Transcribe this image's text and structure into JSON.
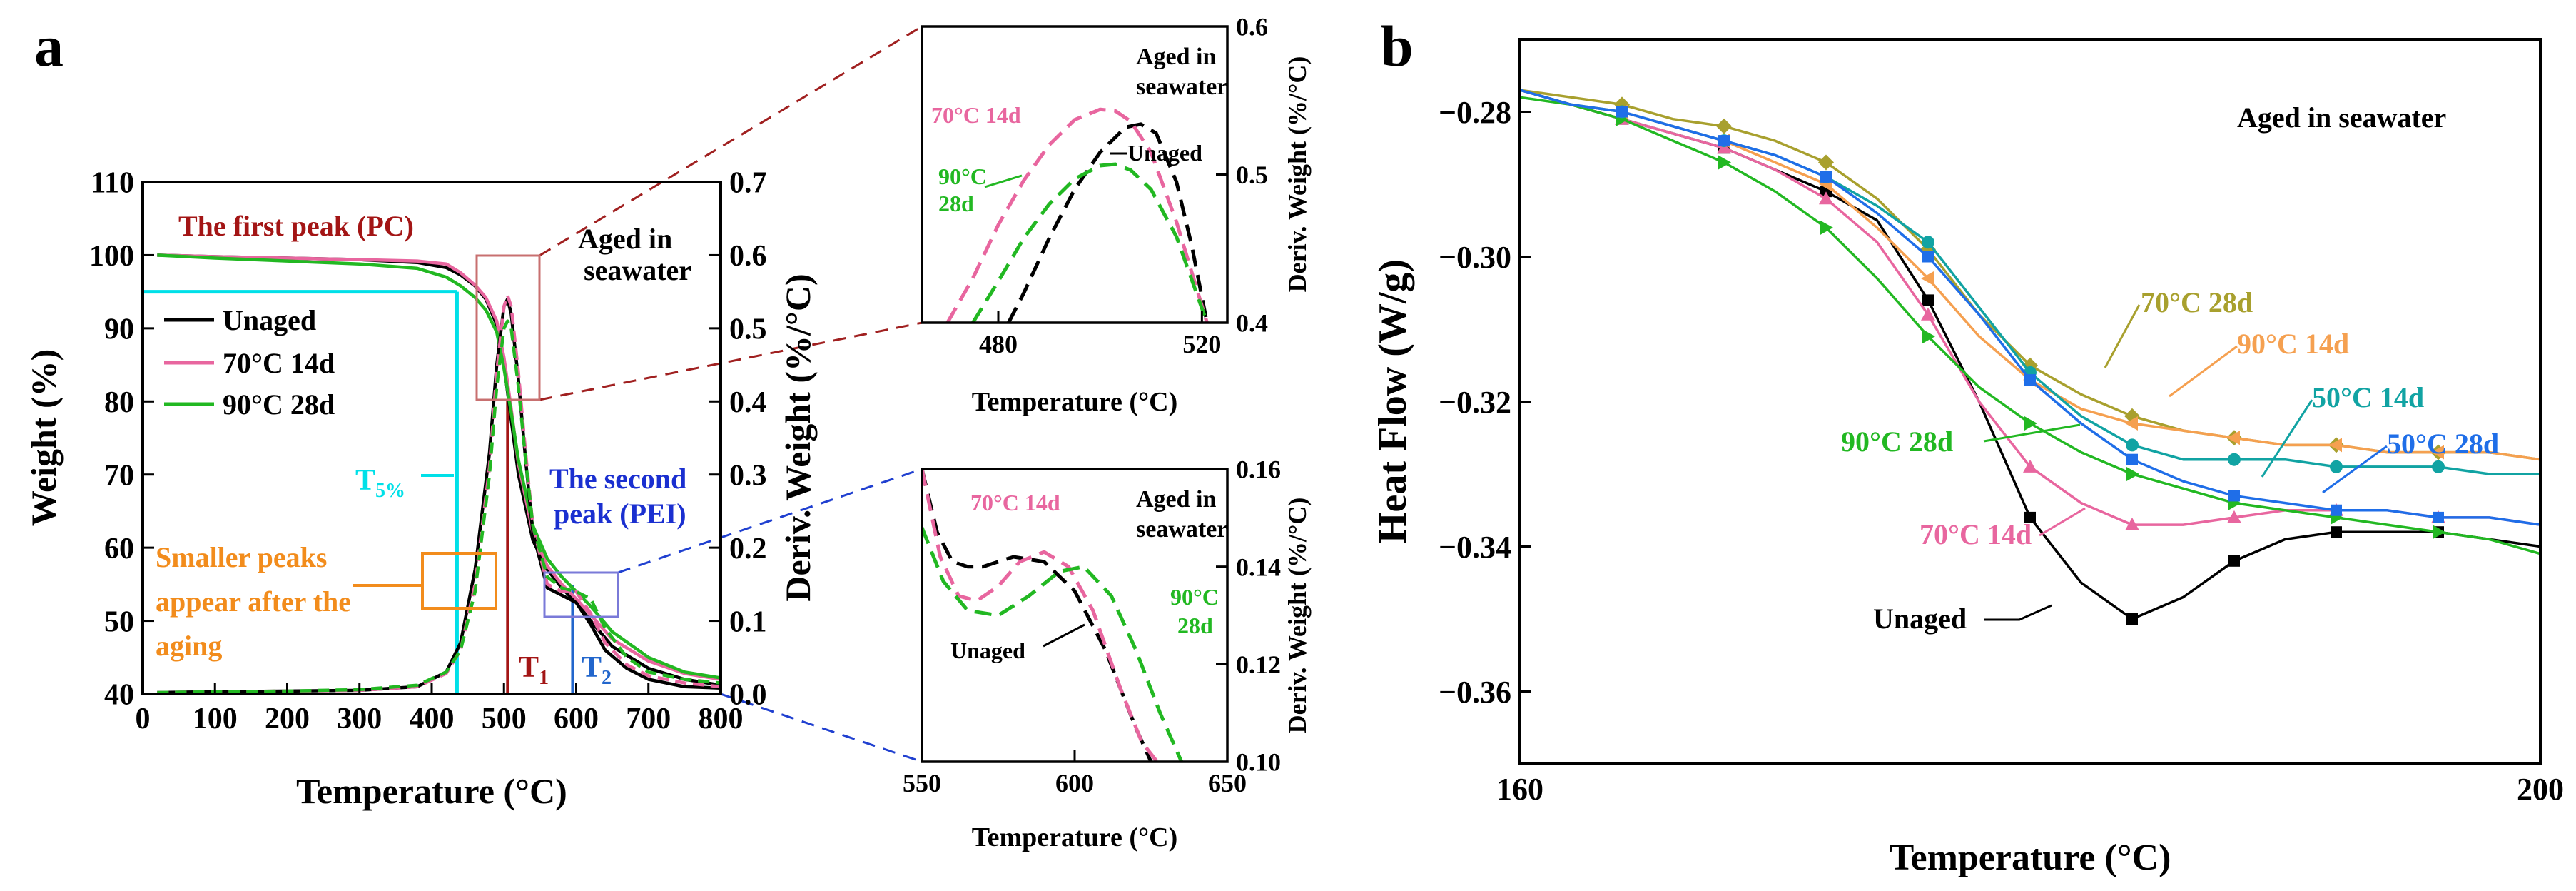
{
  "colors": {
    "unaged": "#000000",
    "c70_14": "#e8669f",
    "c90_28": "#22b822",
    "c70_28": "#a8a02e",
    "c90_14": "#f5a050",
    "c50_14": "#11a3a3",
    "c50_28": "#1f6ee8",
    "pc_label": "#a31515",
    "pei_label": "#1a2fd0",
    "cyan": "#00e0e8",
    "orange": "#f28c1c",
    "t1_line": "#a31515",
    "t2_line": "#2266cc",
    "zoom_box_top": "#c87070",
    "zoom_box_bottom": "#7a7ad8",
    "top_zoom_line": "#a02020",
    "bottom_zoom_line": "#2040d0"
  },
  "panel_a": {
    "label": "a",
    "annotations": {
      "first_peak": "The first peak (PC)",
      "aged": [
        "Aged in",
        "seawater"
      ],
      "second_peak": [
        "The second",
        "peak (PEI)"
      ],
      "smaller_peaks": [
        "Smaller peaks",
        "appear after the",
        "aging"
      ],
      "t5": "T",
      "t5_sub": "5%",
      "t1": "T",
      "t1_sub": "1",
      "t2": "T",
      "t2_sub": "2"
    },
    "legend": [
      "Unaged",
      "70°C 14d",
      "90°C 28d"
    ]
  },
  "panel_b": {
    "label": "b",
    "annotation": "Aged in seawater",
    "series_labels": {
      "c70_28": "70°C 28d",
      "c90_14": "90°C 14d",
      "c50_14": "50°C 14d",
      "c50_28": "50°C 28d",
      "c90_28": "90°C 28d",
      "c70_14": "70°C 14d",
      "unaged": "Unaged"
    }
  },
  "inset_top": {
    "labels": {
      "c70_14": "70°C 14d",
      "c90_28": [
        "90°C",
        "28d"
      ],
      "unaged": "Unaged"
    },
    "aged": [
      "Aged in",
      "seawater"
    ]
  },
  "inset_bottom": {
    "labels": {
      "c70_14": "70°C 14d",
      "c90_28": [
        "90°C",
        "28d"
      ],
      "unaged": "Unaged"
    },
    "aged": [
      "Aged in",
      "seawater"
    ]
  },
  "chart_data": [
    {
      "id": "tga",
      "type": "line",
      "xlabel": "Temperature (°C)",
      "ylabel": "Weight (%)",
      "y2label": "Deriv. Weight (%/°C)",
      "xlim": [
        0,
        800
      ],
      "ylim": [
        40,
        110
      ],
      "y2lim": [
        0,
        0.7
      ],
      "xticks": [
        0,
        100,
        200,
        300,
        400,
        500,
        600,
        700,
        800
      ],
      "yticks": [
        40,
        50,
        60,
        70,
        80,
        90,
        100,
        110
      ],
      "y2ticks": [
        0.0,
        0.1,
        0.2,
        0.3,
        0.4,
        0.5,
        0.6,
        0.7
      ],
      "t5_temperature": 435,
      "t5_weight": 95,
      "t1_temperature": 505,
      "t2_temperature": 595,
      "weight_series": [
        {
          "key": "unaged",
          "x": [
            20,
            100,
            200,
            300,
            380,
            420,
            440,
            460,
            475,
            490,
            500,
            510,
            520,
            540,
            560,
            580,
            600,
            620,
            650,
            700,
            750,
            800
          ],
          "y": [
            100,
            99.8,
            99.6,
            99.4,
            99.0,
            98.3,
            97.3,
            95.8,
            94.0,
            90.5,
            85.0,
            77.5,
            70.0,
            61.0,
            57.0,
            54.5,
            52.5,
            50.0,
            46.5,
            43.5,
            42.0,
            41.2
          ]
        },
        {
          "key": "c70_14",
          "x": [
            20,
            100,
            200,
            300,
            380,
            420,
            440,
            460,
            475,
            490,
            500,
            510,
            520,
            540,
            560,
            580,
            600,
            620,
            650,
            700,
            750,
            800
          ],
          "y": [
            100,
            99.8,
            99.6,
            99.4,
            99.2,
            98.8,
            97.6,
            95.9,
            94.2,
            91.0,
            86.0,
            79.0,
            71.5,
            62.0,
            57.5,
            55.0,
            53.0,
            50.8,
            47.5,
            44.5,
            42.8,
            42.0
          ]
        },
        {
          "key": "c90_28",
          "x": [
            20,
            100,
            200,
            300,
            380,
            420,
            440,
            460,
            475,
            490,
            500,
            510,
            520,
            540,
            560,
            580,
            600,
            620,
            650,
            700,
            750,
            800
          ],
          "y": [
            100,
            99.6,
            99.2,
            98.8,
            98.2,
            97.0,
            95.8,
            94.2,
            92.5,
            89.5,
            84.5,
            78.5,
            72.0,
            63.0,
            58.5,
            56.0,
            54.0,
            52.0,
            48.5,
            45.0,
            43.0,
            42.2
          ]
        }
      ],
      "deriv_series": [
        {
          "key": "unaged",
          "x": [
            20,
            100,
            200,
            300,
            380,
            420,
            440,
            460,
            480,
            490,
            500,
            505,
            510,
            520,
            530,
            540,
            560,
            580,
            600,
            620,
            640,
            670,
            700,
            750,
            800
          ],
          "y": [
            0.002,
            0.003,
            0.004,
            0.005,
            0.01,
            0.03,
            0.07,
            0.17,
            0.33,
            0.45,
            0.53,
            0.54,
            0.52,
            0.43,
            0.32,
            0.22,
            0.145,
            0.135,
            0.125,
            0.095,
            0.06,
            0.035,
            0.02,
            0.01,
            0.008
          ]
        },
        {
          "key": "c70_14",
          "x": [
            20,
            100,
            200,
            300,
            380,
            420,
            440,
            460,
            480,
            490,
            500,
            505,
            510,
            520,
            530,
            540,
            560,
            580,
            600,
            620,
            640,
            670,
            700,
            750,
            800
          ],
          "y": [
            0.002,
            0.003,
            0.004,
            0.005,
            0.01,
            0.028,
            0.06,
            0.15,
            0.31,
            0.44,
            0.53,
            0.545,
            0.53,
            0.44,
            0.33,
            0.23,
            0.15,
            0.14,
            0.14,
            0.11,
            0.07,
            0.04,
            0.025,
            0.015,
            0.01
          ]
        },
        {
          "key": "c90_28",
          "x": [
            20,
            100,
            200,
            300,
            380,
            420,
            440,
            460,
            480,
            490,
            500,
            505,
            510,
            520,
            530,
            540,
            560,
            580,
            600,
            620,
            640,
            670,
            700,
            750,
            800
          ],
          "y": [
            0.002,
            0.003,
            0.004,
            0.006,
            0.012,
            0.03,
            0.06,
            0.14,
            0.3,
            0.42,
            0.5,
            0.51,
            0.5,
            0.42,
            0.32,
            0.23,
            0.16,
            0.145,
            0.14,
            0.13,
            0.09,
            0.05,
            0.03,
            0.02,
            0.015
          ]
        }
      ]
    },
    {
      "id": "inset_top",
      "type": "line",
      "xlabel": "Temperature (°C)",
      "ylabel": "Deriv. Weight (%/°C)",
      "xlim": [
        465,
        525
      ],
      "ylim": [
        0.4,
        0.6
      ],
      "xticks": [
        480,
        520
      ],
      "yticks": [
        0.4,
        0.5,
        0.6
      ],
      "series": [
        {
          "key": "unaged",
          "x": [
            482,
            485,
            490,
            495,
            500,
            505,
            508,
            511,
            515,
            518,
            521
          ],
          "y": [
            0.4,
            0.42,
            0.457,
            0.49,
            0.515,
            0.532,
            0.534,
            0.528,
            0.495,
            0.452,
            0.4
          ]
        },
        {
          "key": "c70_14",
          "x": [
            470,
            475,
            480,
            485,
            490,
            495,
            500,
            503,
            506,
            510,
            515,
            521
          ],
          "y": [
            0.4,
            0.43,
            0.466,
            0.496,
            0.52,
            0.537,
            0.544,
            0.543,
            0.536,
            0.515,
            0.468,
            0.4
          ]
        },
        {
          "key": "c90_28",
          "x": [
            475,
            480,
            485,
            490,
            495,
            500,
            503,
            506,
            510,
            515,
            521
          ],
          "y": [
            0.4,
            0.428,
            0.457,
            0.48,
            0.497,
            0.506,
            0.507,
            0.503,
            0.49,
            0.458,
            0.4
          ]
        }
      ]
    },
    {
      "id": "inset_bottom",
      "type": "line",
      "xlabel": "Temperature (°C)",
      "ylabel": "Deriv. Weight (%/°C)",
      "xlim": [
        550,
        650
      ],
      "ylim": [
        0.1,
        0.16
      ],
      "xticks": [
        550,
        600,
        650
      ],
      "yticks": [
        0.1,
        0.12,
        0.14,
        0.16
      ],
      "series": [
        {
          "key": "unaged",
          "x": [
            550,
            555,
            560,
            565,
            570,
            580,
            590,
            600,
            610,
            620,
            625
          ],
          "y": [
            0.16,
            0.147,
            0.141,
            0.14,
            0.14,
            0.142,
            0.141,
            0.135,
            0.123,
            0.107,
            0.1
          ]
        },
        {
          "key": "c70_14",
          "x": [
            550,
            556,
            562,
            568,
            575,
            582,
            590,
            598,
            606,
            615,
            622,
            627
          ],
          "y": [
            0.16,
            0.142,
            0.134,
            0.133,
            0.136,
            0.141,
            0.143,
            0.14,
            0.131,
            0.115,
            0.104,
            0.1
          ]
        },
        {
          "key": "c90_28",
          "x": [
            550,
            557,
            565,
            575,
            585,
            595,
            603,
            612,
            620,
            628,
            635
          ],
          "y": [
            0.148,
            0.137,
            0.131,
            0.13,
            0.134,
            0.139,
            0.14,
            0.134,
            0.123,
            0.11,
            0.1
          ]
        }
      ]
    },
    {
      "id": "dsc",
      "type": "line",
      "xlabel": "Temperature (°C)",
      "ylabel": "Heat Flow (W/g)",
      "xlim": [
        160,
        200
      ],
      "ylim": [
        -0.37,
        -0.27
      ],
      "xticks": [
        160,
        200
      ],
      "yticks": [
        -0.28,
        -0.3,
        -0.32,
        -0.34,
        -0.36
      ],
      "x": [
        160,
        162,
        164,
        166,
        168,
        170,
        172,
        174,
        176,
        178,
        180,
        182,
        184,
        186,
        188,
        190,
        192,
        194,
        196,
        198,
        200
      ],
      "series": [
        {
          "key": "unaged",
          "marker": "square",
          "y": [
            -0.277,
            -0.279,
            -0.281,
            -0.283,
            -0.285,
            -0.288,
            -0.291,
            -0.295,
            -0.306,
            -0.32,
            -0.336,
            -0.345,
            -0.35,
            -0.347,
            -0.342,
            -0.339,
            -0.338,
            -0.338,
            -0.338,
            -0.339,
            -0.34
          ]
        },
        {
          "key": "c70_14",
          "marker": "triangle-up",
          "y": [
            -0.277,
            -0.279,
            -0.281,
            -0.283,
            -0.285,
            -0.288,
            -0.292,
            -0.298,
            -0.308,
            -0.32,
            -0.329,
            -0.334,
            -0.337,
            -0.337,
            -0.336,
            -0.335,
            -0.335,
            -0.335,
            -0.336,
            -0.336,
            -0.337
          ]
        },
        {
          "key": "c90_28",
          "marker": "triangle-right",
          "y": [
            -0.278,
            -0.279,
            -0.281,
            -0.284,
            -0.287,
            -0.291,
            -0.296,
            -0.303,
            -0.311,
            -0.318,
            -0.323,
            -0.327,
            -0.33,
            -0.332,
            -0.334,
            -0.335,
            -0.336,
            -0.337,
            -0.338,
            -0.339,
            -0.341
          ]
        },
        {
          "key": "c70_28",
          "marker": "diamond",
          "y": [
            -0.277,
            -0.278,
            -0.279,
            -0.281,
            -0.282,
            -0.284,
            -0.287,
            -0.292,
            -0.299,
            -0.308,
            -0.315,
            -0.319,
            -0.322,
            -0.324,
            -0.325,
            -0.326,
            -0.326,
            -0.327,
            -0.327,
            -0.327,
            -0.328
          ]
        },
        {
          "key": "c90_14",
          "marker": "triangle-left",
          "y": [
            -0.277,
            -0.279,
            -0.28,
            -0.282,
            -0.284,
            -0.287,
            -0.29,
            -0.296,
            -0.303,
            -0.311,
            -0.317,
            -0.321,
            -0.323,
            -0.324,
            -0.325,
            -0.326,
            -0.326,
            -0.327,
            -0.327,
            -0.327,
            -0.328
          ]
        },
        {
          "key": "c50_14",
          "marker": "circle",
          "y": [
            -0.277,
            -0.279,
            -0.28,
            -0.282,
            -0.284,
            -0.286,
            -0.289,
            -0.293,
            -0.298,
            -0.307,
            -0.316,
            -0.322,
            -0.326,
            -0.328,
            -0.328,
            -0.328,
            -0.329,
            -0.329,
            -0.329,
            -0.33,
            -0.33
          ]
        },
        {
          "key": "c50_28",
          "marker": "square",
          "y": [
            -0.277,
            -0.279,
            -0.28,
            -0.282,
            -0.284,
            -0.286,
            -0.289,
            -0.294,
            -0.3,
            -0.308,
            -0.317,
            -0.323,
            -0.328,
            -0.331,
            -0.333,
            -0.334,
            -0.335,
            -0.335,
            -0.336,
            -0.336,
            -0.337
          ]
        }
      ]
    }
  ]
}
